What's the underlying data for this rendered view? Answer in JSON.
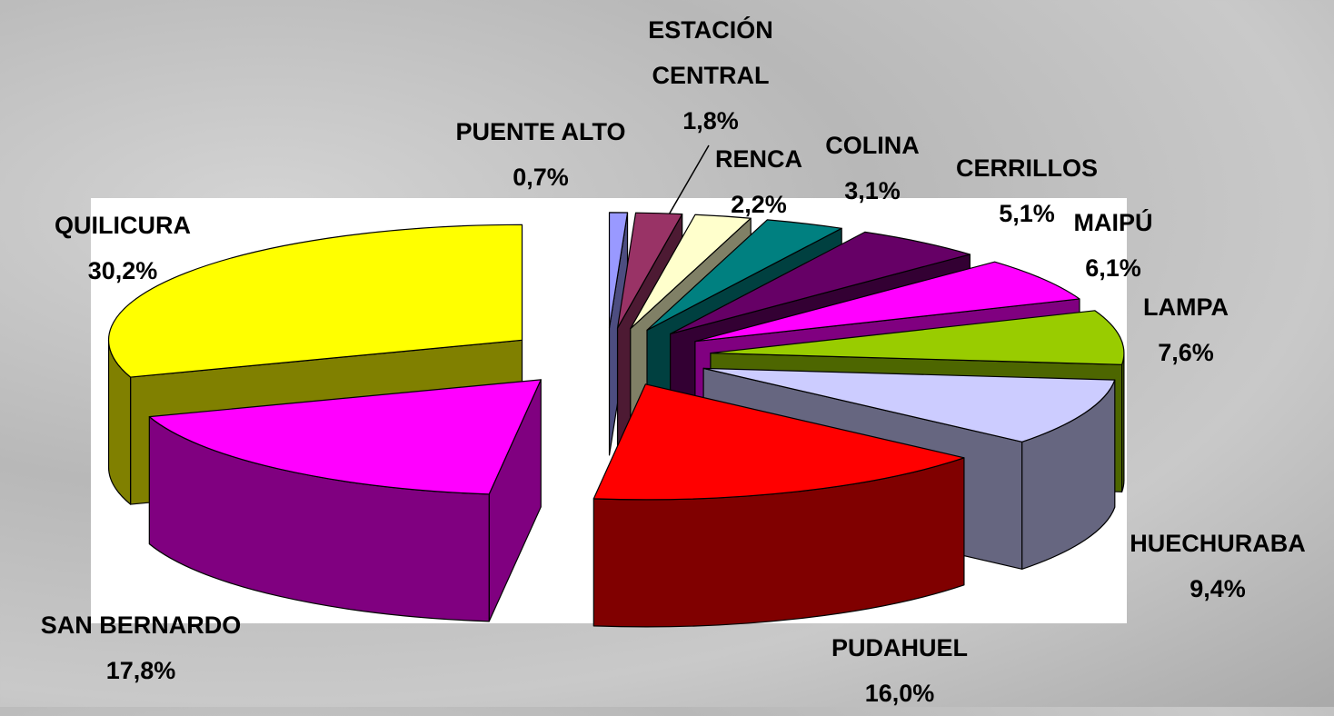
{
  "chart_data": {
    "type": "pie",
    "categories": [
      "PUENTE ALTO",
      "ESTACIÓN CENTRAL",
      "RENCA",
      "COLINA",
      "CERRILLOS",
      "MAIPÚ",
      "LAMPA",
      "HUECHURABA",
      "PUDAHUEL",
      "SAN BERNARDO",
      "QUILICURA"
    ],
    "values": [
      0.7,
      1.8,
      2.2,
      3.1,
      5.1,
      6.1,
      7.6,
      9.4,
      16.0,
      17.8,
      30.2
    ],
    "value_labels": [
      "0,7%",
      "1,8%",
      "2,2%",
      "3,1%",
      "5,1%",
      "6,1%",
      "7,6%",
      "9,4%",
      "16,0%",
      "17,8%",
      "30,2%"
    ],
    "colors": [
      "#9999ff",
      "#993366",
      "#ffffcc",
      "#008080",
      "#660066",
      "#ff00ff",
      "#99cc00",
      "#ccccff",
      "#ff0000",
      "#ff00ff",
      "#ffff00"
    ]
  }
}
